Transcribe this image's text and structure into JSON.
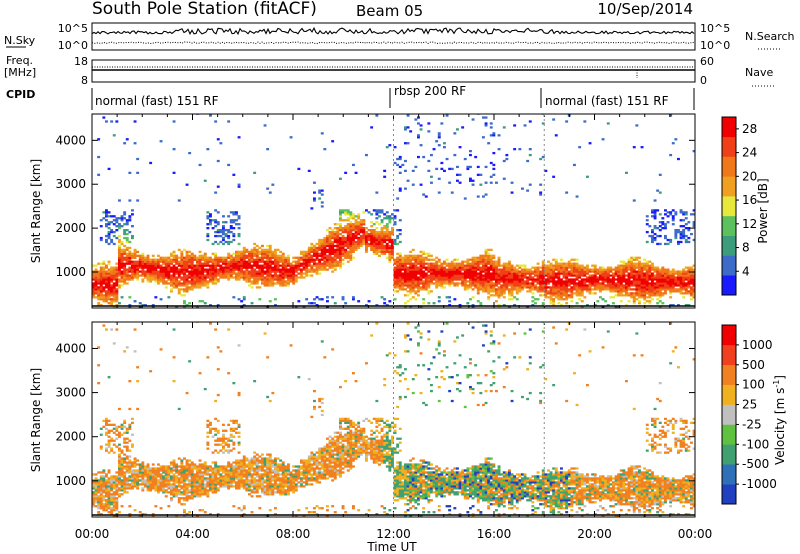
{
  "header": {
    "title": "South Pole Station (fitACF)",
    "beam": "Beam 05",
    "date": "10/Sep/2014"
  },
  "noise_panel": {
    "left_label": "N.Sky",
    "right_label": "N.Search",
    "left_ticks": [
      "10^5",
      "10^0"
    ],
    "right_ticks": [
      "10^5",
      "10^0"
    ]
  },
  "freq_panel": {
    "left_label": "Freq.",
    "left_unit": "[MHz]",
    "right_label": "Nave",
    "left_ticks": [
      "18",
      "8"
    ],
    "right_ticks": [
      "60",
      "0"
    ]
  },
  "cpid": {
    "label": "CPID",
    "segments": [
      {
        "label": "normal (fast) 151 RF",
        "start_hour": 0,
        "end_hour": 12
      },
      {
        "label": "rbsp 200 RF",
        "start_hour": 12,
        "end_hour": 18
      },
      {
        "label": "normal (fast) 151 RF",
        "start_hour": 18,
        "end_hour": 24
      }
    ]
  },
  "chart_data": [
    {
      "type": "heatmap",
      "quantity": "Power",
      "ylabel": "Slant Range [km]",
      "xlabel": "",
      "xlim": [
        0,
        24
      ],
      "ylim": [
        180,
        4600
      ],
      "yticks": [
        1000,
        2000,
        3000,
        4000
      ],
      "colorbar": {
        "label": "Power [dB]",
        "range": [
          0,
          30
        ],
        "ticks": [
          4,
          8,
          12,
          16,
          20,
          24,
          28
        ],
        "colors": [
          "#1a1aff",
          "#3c6cc8",
          "#3c9c7c",
          "#5cc05c",
          "#e8e83c",
          "#f0a020",
          "#f07818",
          "#f04018",
          "#f00000"
        ]
      }
    },
    {
      "type": "heatmap",
      "quantity": "Velocity",
      "ylabel": "Slant Range [km]",
      "xlabel": "Time UT",
      "xlim": [
        0,
        24
      ],
      "ylim": [
        180,
        4600
      ],
      "yticks": [
        1000,
        2000,
        3000,
        4000
      ],
      "xticks": [
        "00:00",
        "04:00",
        "08:00",
        "12:00",
        "16:00",
        "20:00",
        "00:00"
      ],
      "colorbar": {
        "label": "Velocity [m s",
        "label_sup": "-1",
        "label_end": "]",
        "ticks": [
          "1000",
          "500",
          "100",
          "25",
          "-25",
          "-100",
          "-500",
          "-1000"
        ],
        "colors": [
          "#2040c0",
          "#3070b8",
          "#40a070",
          "#60c040",
          "#c0c0c0",
          "#f0b020",
          "#f08020",
          "#f04020",
          "#f00000"
        ]
      }
    }
  ]
}
